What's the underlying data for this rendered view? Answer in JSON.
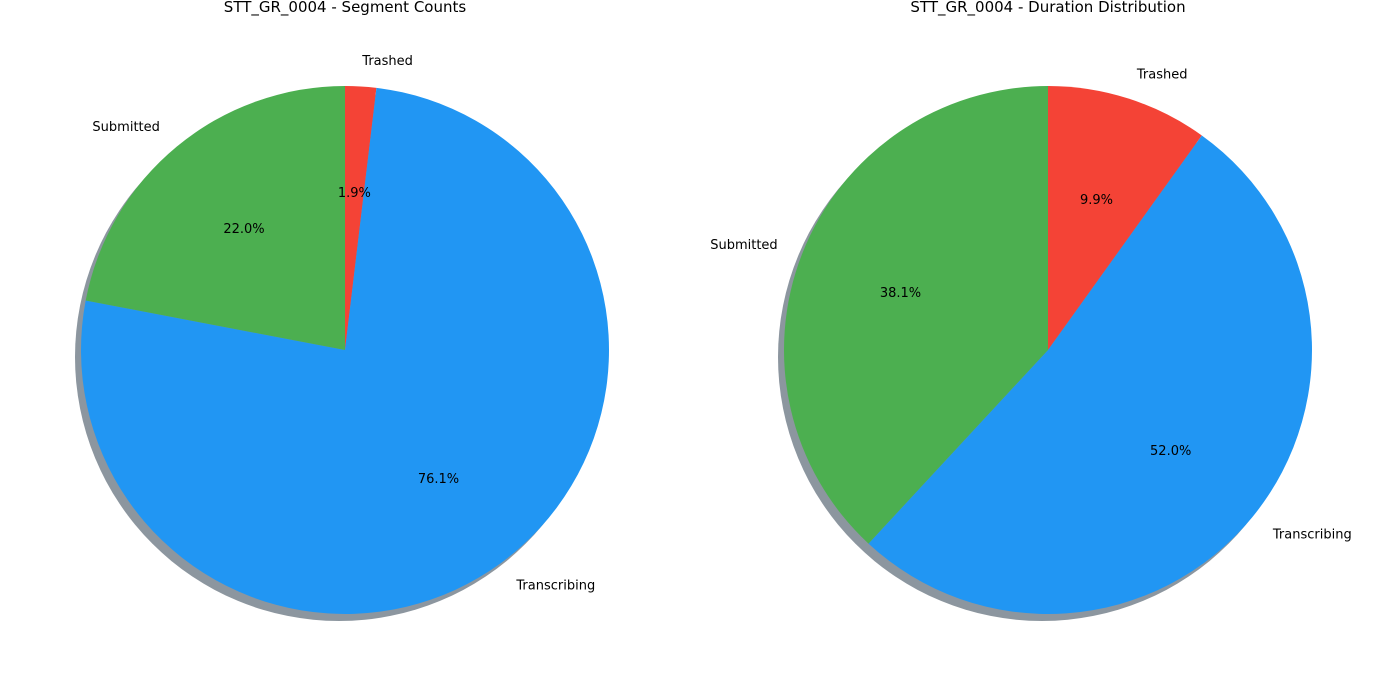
{
  "chart_data": [
    {
      "type": "pie",
      "title": "STT_GR_0004 - Segment Counts",
      "categories": [
        "Trashed",
        "Transcribing",
        "Submitted"
      ],
      "values": [
        1.9,
        76.1,
        22.0
      ],
      "value_labels": [
        "1.9%",
        "76.1%",
        "22.0%"
      ],
      "colors": [
        "#f44336",
        "#2196f3",
        "#4caf50"
      ],
      "start_angle_deg": 90,
      "direction": "clockwise",
      "shadow": true,
      "legend": "none"
    },
    {
      "type": "pie",
      "title": "STT_GR_0004 - Duration Distribution",
      "categories": [
        "Trashed",
        "Transcribing",
        "Submitted"
      ],
      "values": [
        9.9,
        52.0,
        38.1
      ],
      "value_labels": [
        "9.9%",
        "52.0%",
        "38.1%"
      ],
      "colors": [
        "#f44336",
        "#2196f3",
        "#4caf50"
      ],
      "start_angle_deg": 90,
      "direction": "clockwise",
      "shadow": true,
      "legend": "none"
    }
  ]
}
